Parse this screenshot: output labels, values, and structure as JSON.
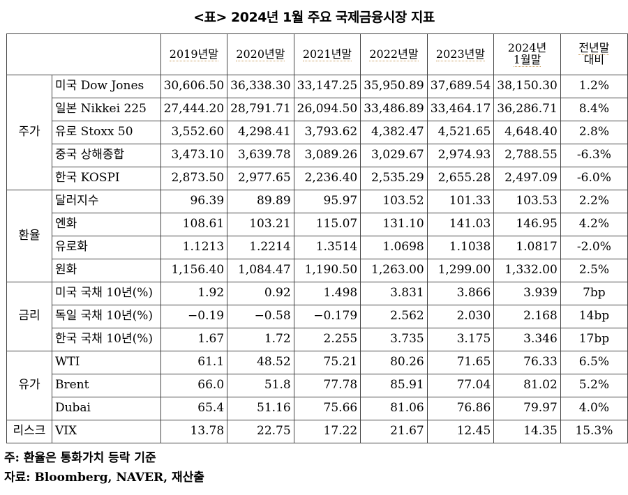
{
  "title": "<표> 2024년 1월 주요 국제금융시장 지표",
  "headers": {
    "blank": "",
    "cols": [
      "2019년말",
      "2020년말",
      "2021년말",
      "2022년말",
      "2023년말"
    ],
    "col6_line1": "2024년",
    "col6_line2": "1월말",
    "col7_line1": "전년말",
    "col7_line2": "대비"
  },
  "groups": {
    "stocks": "주가",
    "fx": "환율",
    "rates": "금리",
    "oil": "유가",
    "risk": "리스크"
  },
  "rows": [
    {
      "name": "미국 Dow Jones",
      "v": [
        "30,606.50",
        "36,338.30",
        "33,147.25",
        "35,950.89",
        "37,689.54",
        "38,150.30"
      ],
      "chg": "1.2%"
    },
    {
      "name": "일본 Nikkei 225",
      "v": [
        "27,444.20",
        "28,791.71",
        "26,094.50",
        "33,486.89",
        "33,464.17",
        "36,286.71"
      ],
      "chg": "8.4%"
    },
    {
      "name": "유로 Stoxx 50",
      "v": [
        "3,552.60",
        "4,298.41",
        "3,793.62",
        "4,382.47",
        "4,521.65",
        "4,648.40"
      ],
      "chg": "2.8%"
    },
    {
      "name": "중국 상해종합",
      "v": [
        "3,473.10",
        "3,639.78",
        "3,089.26",
        "3,029.67",
        "2,974.93",
        "2,788.55"
      ],
      "chg": "-6.3%"
    },
    {
      "name": "한국 KOSPI",
      "v": [
        "2,873.50",
        "2,977.65",
        "2,236.40",
        "2,535.29",
        "2,655.28",
        "2,497.09"
      ],
      "chg": "-6.0%"
    },
    {
      "name": "달러지수",
      "v": [
        "96.39",
        "89.89",
        "95.97",
        "103.52",
        "101.33",
        "103.53"
      ],
      "chg": "2.2%"
    },
    {
      "name": "엔화",
      "v": [
        "108.61",
        "103.21",
        "115.07",
        "131.10",
        "141.03",
        "146.95"
      ],
      "chg": "4.2%"
    },
    {
      "name": "유로화",
      "v": [
        "1.1213",
        "1.2214",
        "1.3514",
        "1.0698",
        "1.1038",
        "1.0817"
      ],
      "chg": "-2.0%"
    },
    {
      "name": "원화",
      "v": [
        "1,156.40",
        "1,084.47",
        "1,190.50",
        "1,263.00",
        "1,299.00",
        "1,332.00"
      ],
      "chg": "2.5%"
    },
    {
      "name": "미국 국채 10년(%)",
      "v": [
        "1.92",
        "0.92",
        "1.498",
        "3.831",
        "3.866",
        "3.939"
      ],
      "chg": "7bp"
    },
    {
      "name": "독일 국채 10년(%)",
      "v": [
        "−0.19",
        "−0.58",
        "−0.179",
        "2.562",
        "2.030",
        "2.168"
      ],
      "chg": "14bp"
    },
    {
      "name": "한국 국채 10년(%)",
      "v": [
        "1.67",
        "1.72",
        "2.255",
        "3.735",
        "3.175",
        "3.346"
      ],
      "chg": "17bp"
    },
    {
      "name": "WTI",
      "v": [
        "61.1",
        "48.52",
        "75.21",
        "80.26",
        "71.65",
        "76.33"
      ],
      "chg": "6.5%"
    },
    {
      "name": "Brent",
      "v": [
        "66.0",
        "51.8",
        "77.78",
        "85.91",
        "77.04",
        "81.02"
      ],
      "chg": "5.2%"
    },
    {
      "name": "Dubai",
      "v": [
        "65.4",
        "51.16",
        "75.66",
        "81.06",
        "76.86",
        "79.97"
      ],
      "chg": "4.0%"
    },
    {
      "name": "VIX",
      "v": [
        "13.78",
        "22.75",
        "17.22",
        "21.67",
        "12.45",
        "14.35"
      ],
      "chg": "15.3%"
    }
  ],
  "notes": {
    "note1": "주: 환율은 통화가치 등락 기준",
    "note2": "자료: Bloomberg, NAVER, 재산출"
  }
}
